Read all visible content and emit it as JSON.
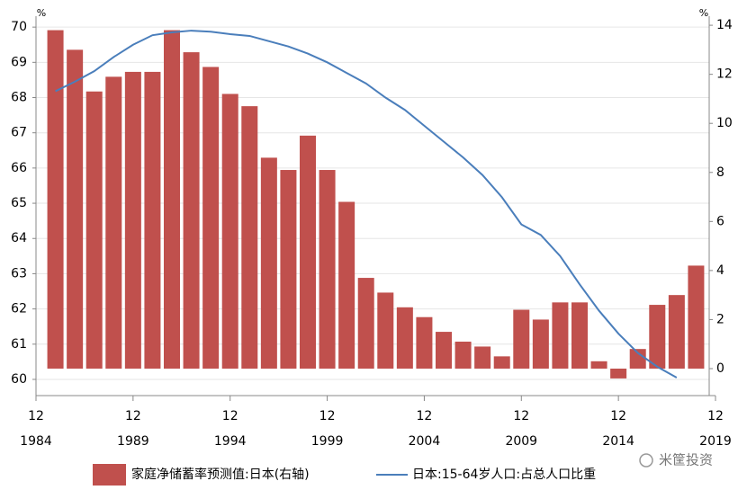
{
  "chart_data": {
    "type": "bar-line",
    "x": [
      1985,
      1986,
      1987,
      1988,
      1989,
      1990,
      1991,
      1992,
      1993,
      1994,
      1995,
      1996,
      1997,
      1998,
      1999,
      2000,
      2001,
      2002,
      2003,
      2004,
      2005,
      2006,
      2007,
      2008,
      2009,
      2010,
      2011,
      2012,
      2013,
      2014,
      2015,
      2016,
      2017,
      2018
    ],
    "series": [
      {
        "name": "家庭净储蓄率预测值:日本(右轴)",
        "type": "bar",
        "axis": "y2",
        "color": "#c0504d",
        "values": [
          13.8,
          13.0,
          11.3,
          11.9,
          12.1,
          12.1,
          13.8,
          12.9,
          12.3,
          11.2,
          10.7,
          8.6,
          8.1,
          9.5,
          8.1,
          6.8,
          3.7,
          3.1,
          2.5,
          2.1,
          1.5,
          1.1,
          0.9,
          0.5,
          2.4,
          2.0,
          2.7,
          2.7,
          0.3,
          -0.4,
          0.8,
          2.6,
          3.0,
          4.2
        ]
      },
      {
        "name": "日本:15-64岁人口:占总人口比重",
        "type": "line",
        "axis": "y",
        "color": "#4a7ebb",
        "values": [
          68.18,
          68.45,
          68.75,
          69.15,
          69.5,
          69.77,
          69.85,
          69.9,
          69.87,
          69.8,
          69.75,
          69.6,
          69.45,
          69.25,
          69.0,
          68.7,
          68.4,
          68.0,
          67.65,
          67.2,
          66.75,
          66.3,
          65.8,
          65.17,
          64.4,
          64.1,
          63.5,
          62.7,
          61.95,
          61.3,
          60.75,
          60.36,
          60.05,
          null
        ]
      }
    ],
    "xlim": [
      1984,
      2019
    ],
    "xticks": [
      {
        "value": 1984,
        "label": [
          "12",
          "1984"
        ]
      },
      {
        "value": 1989,
        "label": [
          "12",
          "1989"
        ]
      },
      {
        "value": 1994,
        "label": [
          "12",
          "1994"
        ]
      },
      {
        "value": 1999,
        "label": [
          "12",
          "1999"
        ]
      },
      {
        "value": 2004,
        "label": [
          "12",
          "2004"
        ]
      },
      {
        "value": 2009,
        "label": [
          "12",
          "2009"
        ]
      },
      {
        "value": 2014,
        "label": [
          "12",
          "2014"
        ]
      },
      {
        "value": 2019,
        "label": [
          "12",
          "2019"
        ]
      }
    ],
    "ylim": [
      59.54,
      70.31
    ],
    "yticks": [
      60,
      61,
      62,
      63,
      64,
      65,
      66,
      67,
      68,
      69,
      70
    ],
    "y_unit": "%",
    "y2lim": [
      -1.1,
      14.37
    ],
    "y2ticks": [
      0,
      2,
      4,
      6,
      8,
      10,
      12,
      14
    ],
    "y2_unit": "%",
    "grid": true,
    "legend": "bottom",
    "watermark": "米筐投资"
  }
}
